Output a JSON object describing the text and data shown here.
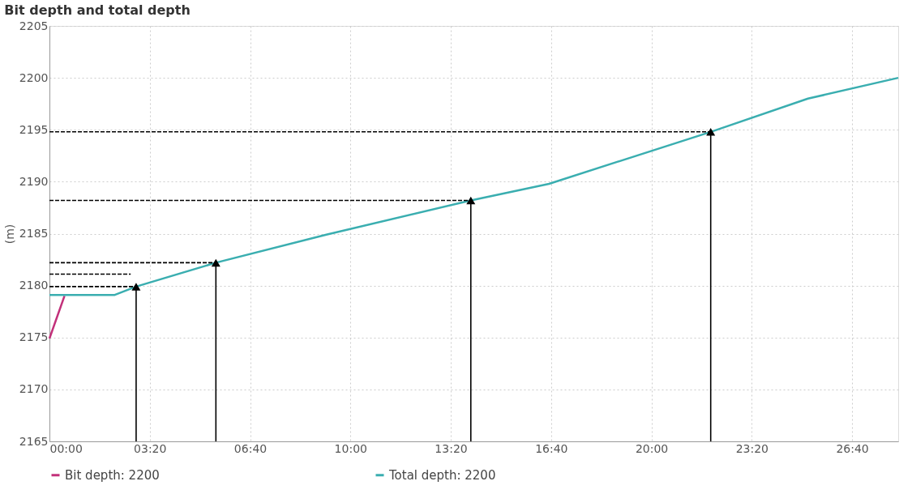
{
  "chart_data": {
    "type": "line",
    "title": "Bit depth and total depth",
    "ylabel": "(m)",
    "xlim": [
      0,
      28.2
    ],
    "ylim": [
      2165,
      2205
    ],
    "xticks": [
      {
        "value": 0,
        "label": "00:00"
      },
      {
        "value": 3.333,
        "label": "03:20"
      },
      {
        "value": 6.667,
        "label": "06:40"
      },
      {
        "value": 10,
        "label": "10:00"
      },
      {
        "value": 13.333,
        "label": "13:20"
      },
      {
        "value": 16.667,
        "label": "16:40"
      },
      {
        "value": 20,
        "label": "20:00"
      },
      {
        "value": 23.333,
        "label": "23:20"
      },
      {
        "value": 26.667,
        "label": "26:40"
      }
    ],
    "yticks": [
      2165,
      2170,
      2175,
      2180,
      2185,
      2190,
      2195,
      2200,
      2205
    ],
    "grid": true,
    "legend": "bottom",
    "line_style": "solid",
    "series": [
      {
        "name": "Bit depth: 2200",
        "color": "#c2307a",
        "x": [
          0,
          0.5
        ],
        "values": [
          2174.9,
          2179.0
        ]
      },
      {
        "name": "Total depth: 2200",
        "color": "#3aaeb0",
        "x": [
          0,
          2.17,
          2.88,
          5.53,
          9.2,
          14.0,
          16.6,
          21.97,
          25.2,
          28.2
        ],
        "values": [
          2179.1,
          2179.1,
          2179.9,
          2182.2,
          2184.9,
          2188.2,
          2189.8,
          2194.8,
          2198.0,
          2200.0
        ]
      },
      {
        "color": "#000000",
        "line_style": "dashed",
        "x": [
          0,
          2.88
        ],
        "values": [
          2179.9,
          2179.9
        ]
      },
      {
        "color": "#000000",
        "line_style": "dashed",
        "x": [
          0,
          2.7
        ],
        "values": [
          2181.1,
          2181.1
        ]
      },
      {
        "color": "#000000",
        "line_style": "dashed",
        "x": [
          0,
          5.53
        ],
        "values": [
          2182.2,
          2182.2
        ]
      },
      {
        "color": "#000000",
        "line_style": "dashed",
        "x": [
          0,
          14.0
        ],
        "values": [
          2188.2,
          2188.2
        ]
      },
      {
        "color": "#000000",
        "line_style": "dashed",
        "x": [
          0,
          21.97
        ],
        "values": [
          2194.8,
          2194.8
        ]
      },
      {
        "color": "#000000",
        "x": [
          2.88,
          2.88
        ],
        "values": [
          2165,
          2179.9
        ]
      },
      {
        "color": "#000000",
        "x": [
          5.53,
          5.53
        ],
        "values": [
          2165,
          2182.2
        ]
      },
      {
        "color": "#000000",
        "x": [
          14.0,
          14.0
        ],
        "values": [
          2165,
          2188.2
        ]
      },
      {
        "color": "#000000",
        "x": [
          21.97,
          21.97
        ],
        "values": [
          2165,
          2194.8
        ]
      }
    ]
  }
}
